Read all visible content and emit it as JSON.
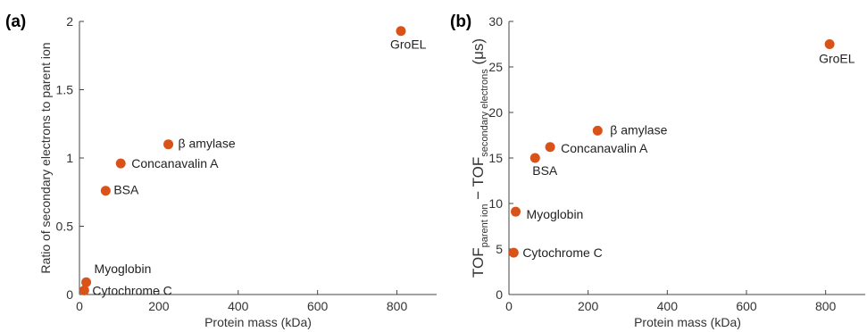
{
  "colors": {
    "marker": "#D95319",
    "axis": "#444444",
    "text": "#333333"
  },
  "chart_data": [
    {
      "type": "scatter",
      "panel_label": "(a)",
      "xlabel": "Protein mass (kDa)",
      "ylabel": "Ratio of secondary electrons to parent ion",
      "xlim": [
        0,
        900
      ],
      "ylim": [
        0,
        2
      ],
      "xticks": [
        0,
        200,
        400,
        600,
        800
      ],
      "xtick_labels": [
        "0",
        "200",
        "400",
        "600",
        "800"
      ],
      "yticks": [
        0,
        0.5,
        1,
        1.5,
        2
      ],
      "ytick_labels": [
        "0",
        "0.5",
        "1",
        "1.5",
        "2"
      ],
      "points": [
        {
          "label": "Cytochrome C",
          "x": 12,
          "y": 0.03
        },
        {
          "label": "Myoglobin",
          "x": 17,
          "y": 0.09
        },
        {
          "label": "BSA",
          "x": 66,
          "y": 0.76
        },
        {
          "label": "Concanavalin A",
          "x": 104,
          "y": 0.96
        },
        {
          "label": "β amylase",
          "x": 224,
          "y": 1.1
        },
        {
          "label": "GroEL",
          "x": 810,
          "y": 1.93
        }
      ]
    },
    {
      "type": "scatter",
      "panel_label": "(b)",
      "xlabel": "Protein mass (kDa)",
      "ylabel_main_1": "TOF",
      "ylabel_sub_1": "parent ion",
      "ylabel_main_2": " − TOF",
      "ylabel_sub_2": "secondary electrons",
      "ylabel_unit": " (μs)",
      "xlim": [
        0,
        900
      ],
      "ylim": [
        0,
        30
      ],
      "xticks": [
        0,
        200,
        400,
        600,
        800
      ],
      "xtick_labels": [
        "0",
        "200",
        "400",
        "600",
        "800"
      ],
      "yticks": [
        0,
        5,
        10,
        15,
        20,
        25,
        30
      ],
      "ytick_labels": [
        "0",
        "5",
        "10",
        "15",
        "20",
        "25",
        "30"
      ],
      "points": [
        {
          "label": "Cytochrome C",
          "x": 12,
          "y": 4.6
        },
        {
          "label": "Myoglobin",
          "x": 17,
          "y": 9.1
        },
        {
          "label": "BSA",
          "x": 66,
          "y": 15.0
        },
        {
          "label": "Concanavalin A",
          "x": 104,
          "y": 16.2
        },
        {
          "label": "β amylase",
          "x": 224,
          "y": 18.0
        },
        {
          "label": "GroEL",
          "x": 810,
          "y": 27.5
        }
      ]
    }
  ]
}
